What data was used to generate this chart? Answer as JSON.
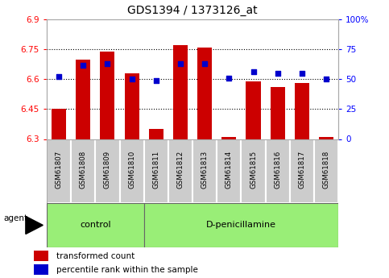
{
  "title": "GDS1394 / 1373126_at",
  "samples": [
    "GSM61807",
    "GSM61808",
    "GSM61809",
    "GSM61810",
    "GSM61811",
    "GSM61812",
    "GSM61813",
    "GSM61814",
    "GSM61815",
    "GSM61816",
    "GSM61817",
    "GSM61818"
  ],
  "transformed_count": [
    6.45,
    6.7,
    6.74,
    6.63,
    6.35,
    6.77,
    6.76,
    6.31,
    6.59,
    6.56,
    6.58,
    6.31
  ],
  "percentile_rank": [
    52,
    62,
    63,
    50,
    49,
    63,
    63,
    51,
    56,
    55,
    55,
    50
  ],
  "bar_bottom": 6.3,
  "ylim_left": [
    6.3,
    6.9
  ],
  "ylim_right": [
    0,
    100
  ],
  "yticks_left": [
    6.3,
    6.45,
    6.6,
    6.75,
    6.9
  ],
  "ytick_labels_left": [
    "6.3",
    "6.45",
    "6.6",
    "6.75",
    "6.9"
  ],
  "yticks_right": [
    0,
    25,
    50,
    75,
    100
  ],
  "ytick_labels_right": [
    "0",
    "25",
    "50",
    "75",
    "100%"
  ],
  "hlines": [
    6.45,
    6.6,
    6.75
  ],
  "bar_color": "#cc0000",
  "dot_color": "#0000cc",
  "control_samples": 4,
  "control_label": "control",
  "treatment_label": "D-penicillamine",
  "agent_label": "agent",
  "legend_items": [
    "transformed count",
    "percentile rank within the sample"
  ],
  "group_bg_color": "#99ee77",
  "sample_bg_color": "#cccccc",
  "plot_bg_color": "#ffffff",
  "title_fontsize": 10,
  "axis_fontsize": 7.5,
  "label_fontsize": 8,
  "bar_width": 0.6
}
